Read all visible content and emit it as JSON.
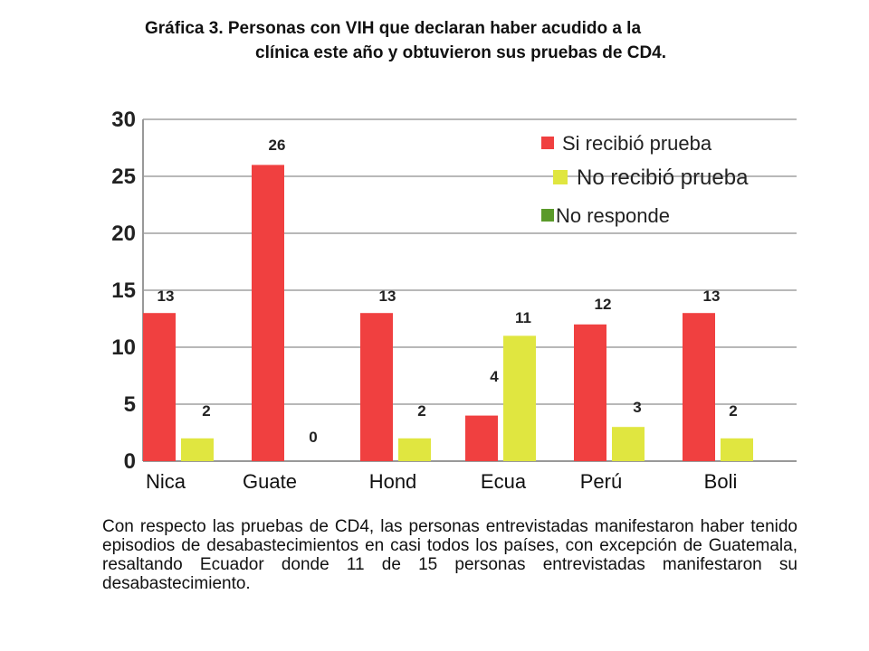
{
  "title_line1": "Gráfica 3. Personas con VIH que declaran haber acudido a la",
  "title_line2": "clínica este año y obtuvieron sus pruebas de CD4.",
  "paragraph": "Con respecto las pruebas de CD4, las personas entrevistadas manifestaron haber tenido episodios de desabastecimientos en casi todos los países, con excepción de Guatemala, resaltando Ecuador donde 11 de 15 personas entrevistadas manifestaron su desabastecimiento.",
  "chart_data": {
    "type": "bar",
    "categories": [
      "Nica",
      "Guate",
      "Hond",
      "Ecua",
      "Perú",
      "Boli"
    ],
    "series": [
      {
        "name": "Si recibió prueba",
        "color": "#f04040",
        "values": [
          13,
          26,
          null,
          4,
          12,
          13
        ],
        "labels": [
          "13",
          "26",
          "13",
          "4",
          "12",
          "13"
        ]
      },
      {
        "name": "No recibió prueba",
        "color": "#e0e640",
        "values": [
          2,
          0,
          2,
          11,
          3,
          2
        ],
        "labels": [
          "2",
          "0",
          "2",
          "11",
          "3",
          "2"
        ]
      },
      {
        "name": "No responde",
        "color": "#5a9a2a",
        "values": [
          null,
          null,
          null,
          null,
          null,
          null
        ],
        "labels": []
      }
    ],
    "hond_red": 13,
    "yticks": [
      "0",
      "5",
      "10",
      "15",
      "20",
      "25",
      "30"
    ],
    "ylim": [
      0,
      30
    ],
    "grid": true,
    "legend_position": "top-right"
  }
}
